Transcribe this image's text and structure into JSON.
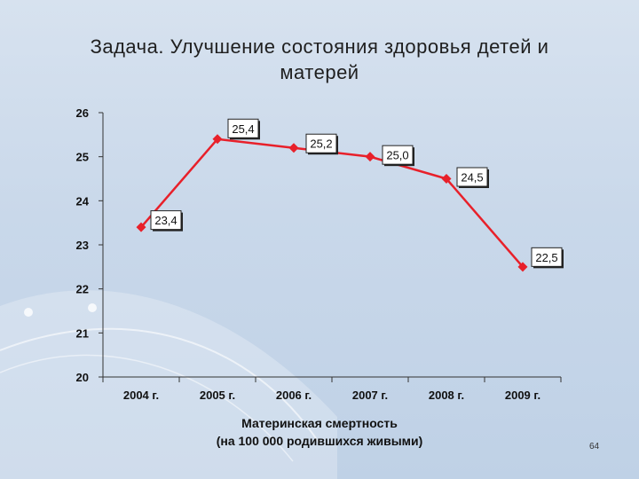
{
  "slide": {
    "title_line1": "Задача. Улучшение состояния здоровья детей и",
    "title_line2": "матерей",
    "page_number": "64"
  },
  "chart_data": {
    "type": "line",
    "categories": [
      "2004 г.",
      "2005 г.",
      "2006 г.",
      "2007 г.",
      "2008 г.",
      "2009 г."
    ],
    "values": [
      23.4,
      25.4,
      25.2,
      25.0,
      24.5,
      22.5
    ],
    "data_labels": [
      "23,4",
      "25,4",
      "25,2",
      "25,0",
      "24,5",
      "22,5"
    ],
    "xlabel_line1": "Материнская смертность",
    "xlabel_line2": "(на 100 000 родившихся живыми)",
    "ylim": [
      20,
      26
    ],
    "yticks": [
      "20",
      "21",
      "22",
      "23",
      "24",
      "25",
      "26"
    ],
    "grid": false,
    "series_color": "#e8202a"
  }
}
